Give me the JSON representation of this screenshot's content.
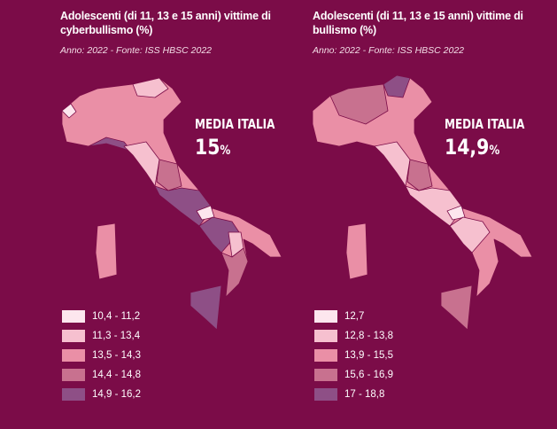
{
  "panels": [
    {
      "title": "Adolescenti (di 11, 13 e 15 anni) vittime di cyberbullismo (%)",
      "subtitle": "Anno: 2022 - Fonte: ISS HBSC 2022",
      "media_label": "MEDIA ITALIA",
      "media_value": "15",
      "media_unit": "%",
      "legend": [
        {
          "label": "10,4 - 11,2",
          "color": "#fde6ee"
        },
        {
          "label": "11,3 - 13,4",
          "color": "#f6c0cf"
        },
        {
          "label": "13,5 - 14,3",
          "color": "#ea8fa6"
        },
        {
          "label": "14,4 - 14,8",
          "color": "#c8718f"
        },
        {
          "label": "14,9 - 16,2",
          "color": "#8e4f86"
        }
      ]
    },
    {
      "title": "Adolescenti (di 11, 13 e 15 anni) vittime di bullismo (%)",
      "subtitle": "Anno: 2022 - Fonte: ISS HBSC 2022",
      "media_label": "MEDIA ITALIA",
      "media_value": "14,9",
      "media_unit": "%",
      "legend": [
        {
          "label": "12,7",
          "color": "#fde6ee"
        },
        {
          "label": "12,8 - 13,8",
          "color": "#f6c0cf"
        },
        {
          "label": "13,9 - 15,5",
          "color": "#ea8fa6"
        },
        {
          "label": "15,6 - 16,9",
          "color": "#c8718f"
        },
        {
          "label": "17 - 18,8",
          "color": "#8e4f86"
        }
      ]
    }
  ]
}
